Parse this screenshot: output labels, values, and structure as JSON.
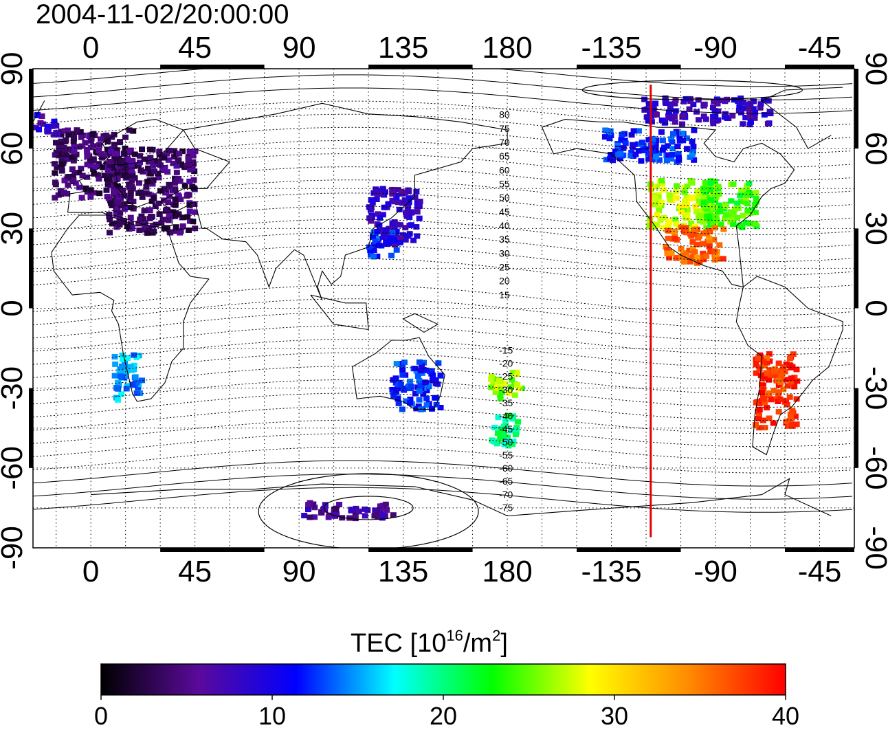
{
  "title": "2004-11-02/20:00:00",
  "map": {
    "lon_ticks_top": [
      "0",
      "45",
      "90",
      "135",
      "180",
      "-135",
      "-90",
      "-45"
    ],
    "lon_ticks_bottom": [
      "0",
      "45",
      "90",
      "135",
      "180",
      "-135",
      "-90",
      "-45"
    ],
    "lat_ticks_left": [
      "90",
      "60",
      "30",
      "0",
      "-30",
      "-60",
      "-90"
    ],
    "lat_ticks_right": [
      "90",
      "60",
      "30",
      "0",
      "-30",
      "-60",
      "-90"
    ],
    "lon_range": [
      -25,
      330
    ],
    "lat_range": [
      -90,
      90
    ],
    "terminator_lon": -118,
    "terminator_color": "#e00000",
    "mag_lat_labels_north": [
      "80",
      "75",
      "70",
      "65",
      "60",
      "55",
      "50",
      "45",
      "40",
      "35",
      "30",
      "25",
      "20",
      "15"
    ],
    "mag_lat_labels_south": [
      "-15",
      "-20",
      "-25",
      "-30",
      "-35",
      "-40",
      "-45",
      "-50",
      "-55",
      "-60",
      "-65",
      "-70",
      "-75"
    ]
  },
  "colorbar": {
    "label_main": "TEC  [10",
    "label_sup1": "16",
    "label_mid": "/m",
    "label_sup2": "2",
    "label_end": "]",
    "ticks": [
      "0",
      "10",
      "20",
      "30",
      "40"
    ],
    "range": [
      0,
      40
    ],
    "colors": [
      "#000000",
      "#5a0a9a",
      "#0000ff",
      "#00ffff",
      "#00ff00",
      "#ffff00",
      "#ff8c00",
      "#ff0000"
    ]
  },
  "tec_regions": [
    {
      "lon": 0,
      "lat": 55,
      "tec": 4,
      "w": 34,
      "h": 26
    },
    {
      "lon": 25,
      "lat": 45,
      "tec": 4,
      "w": 38,
      "h": 32
    },
    {
      "lon": -20,
      "lat": 70,
      "tec": 8,
      "w": 10,
      "h": 8
    },
    {
      "lon": 130,
      "lat": 35,
      "tec": 8,
      "w": 22,
      "h": 22
    },
    {
      "lon": 125,
      "lat": 25,
      "tec": 12,
      "w": 12,
      "h": 10
    },
    {
      "lon": -105,
      "lat": 40,
      "tec": 27,
      "w": 30,
      "h": 18
    },
    {
      "lon": -85,
      "lat": 40,
      "tec": 24,
      "w": 24,
      "h": 18
    },
    {
      "lon": -100,
      "lat": 25,
      "tec": 36,
      "w": 26,
      "h": 14
    },
    {
      "lon": -120,
      "lat": 62,
      "tec": 12,
      "w": 40,
      "h": 12
    },
    {
      "lon": -95,
      "lat": 75,
      "tec": 8,
      "w": 55,
      "h": 10
    },
    {
      "lon": -65,
      "lat": -30,
      "tec": 38,
      "w": 18,
      "h": 28
    },
    {
      "lon": 178,
      "lat": -28,
      "tec": 26,
      "w": 14,
      "h": 10
    },
    {
      "lon": 178,
      "lat": -45,
      "tec": 20,
      "w": 12,
      "h": 12
    },
    {
      "lon": 140,
      "lat": -28,
      "tec": 12,
      "w": 22,
      "h": 18
    },
    {
      "lon": 15,
      "lat": -25,
      "tec": 15,
      "w": 12,
      "h": 18
    },
    {
      "lon": 110,
      "lat": -75,
      "tec": 6,
      "w": 40,
      "h": 6
    }
  ]
}
